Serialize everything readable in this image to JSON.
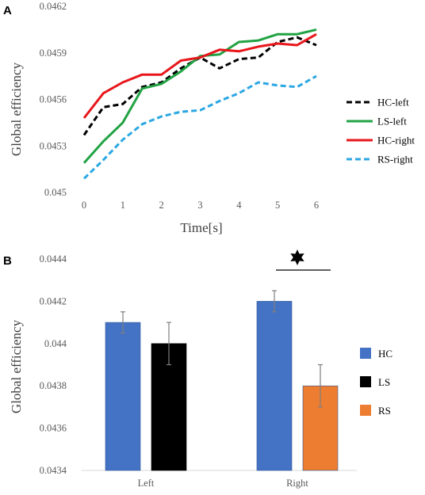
{
  "chart_data": [
    {
      "panel": "A",
      "type": "line",
      "xlabel": "Time[s]",
      "ylabel": "Global efficiency",
      "xlim": [
        0,
        6
      ],
      "ylim": [
        0.045,
        0.0462
      ],
      "x_ticks": [
        "0",
        "1",
        "2",
        "3",
        "4",
        "5",
        "6"
      ],
      "y_ticks": [
        "0.045",
        "0.0453",
        "0.0456",
        "0.0459",
        "0.0462"
      ],
      "grid": false,
      "legend": "right",
      "x": [
        0,
        0.5,
        1,
        1.5,
        2,
        2.5,
        3,
        3.5,
        4,
        4.5,
        5,
        5.5,
        6
      ],
      "series": [
        {
          "name": "HC-left",
          "color": "#000000",
          "dash": true,
          "values": [
            0.04537,
            0.04555,
            0.04557,
            0.04568,
            0.04571,
            0.0458,
            0.04587,
            0.0458,
            0.04586,
            0.04587,
            0.04597,
            0.046,
            0.04595
          ]
        },
        {
          "name": "LS-left",
          "color": "#21a243",
          "dash": false,
          "values": [
            0.04519,
            0.04533,
            0.04545,
            0.04567,
            0.0457,
            0.04578,
            0.04588,
            0.04589,
            0.04597,
            0.04598,
            0.04602,
            0.04602,
            0.04605
          ]
        },
        {
          "name": "HC-right",
          "color": "#e8161b",
          "dash": false,
          "values": [
            0.04548,
            0.04564,
            0.04571,
            0.04576,
            0.04576,
            0.04585,
            0.04587,
            0.04592,
            0.04591,
            0.04594,
            0.04596,
            0.04595,
            0.04602
          ]
        },
        {
          "name": "RS-right",
          "color": "#2aa7e3",
          "dash": true,
          "values": [
            0.04509,
            0.04521,
            0.04534,
            0.04544,
            0.04549,
            0.04552,
            0.04553,
            0.04559,
            0.04564,
            0.04571,
            0.04569,
            0.04568,
            0.04575
          ]
        }
      ]
    },
    {
      "panel": "B",
      "type": "bar",
      "xlabel": "",
      "ylabel": "Global efficiency",
      "ylim": [
        0.0434,
        0.0444
      ],
      "y_ticks": [
        "0.0434",
        "0.0436",
        "0.0438",
        "0.044",
        "0.0442",
        "0.0444"
      ],
      "categories": [
        "Left",
        "Right"
      ],
      "grid": false,
      "legend": "right",
      "series": [
        {
          "name": "HC",
          "color": "#4472c4",
          "values": [
            0.0441,
            0.0442
          ],
          "errors": [
            5e-05,
            5e-05
          ]
        },
        {
          "name": "LS",
          "color": "#000000",
          "values": [
            0.044,
            null
          ],
          "errors": [
            0.0001,
            null
          ]
        },
        {
          "name": "RS",
          "color": "#ed7d31",
          "values": [
            null,
            0.0438
          ],
          "errors": [
            null,
            0.0001
          ]
        }
      ],
      "annotations": [
        {
          "symbol": "✶",
          "category": "Right",
          "color": "#000000"
        }
      ]
    }
  ]
}
